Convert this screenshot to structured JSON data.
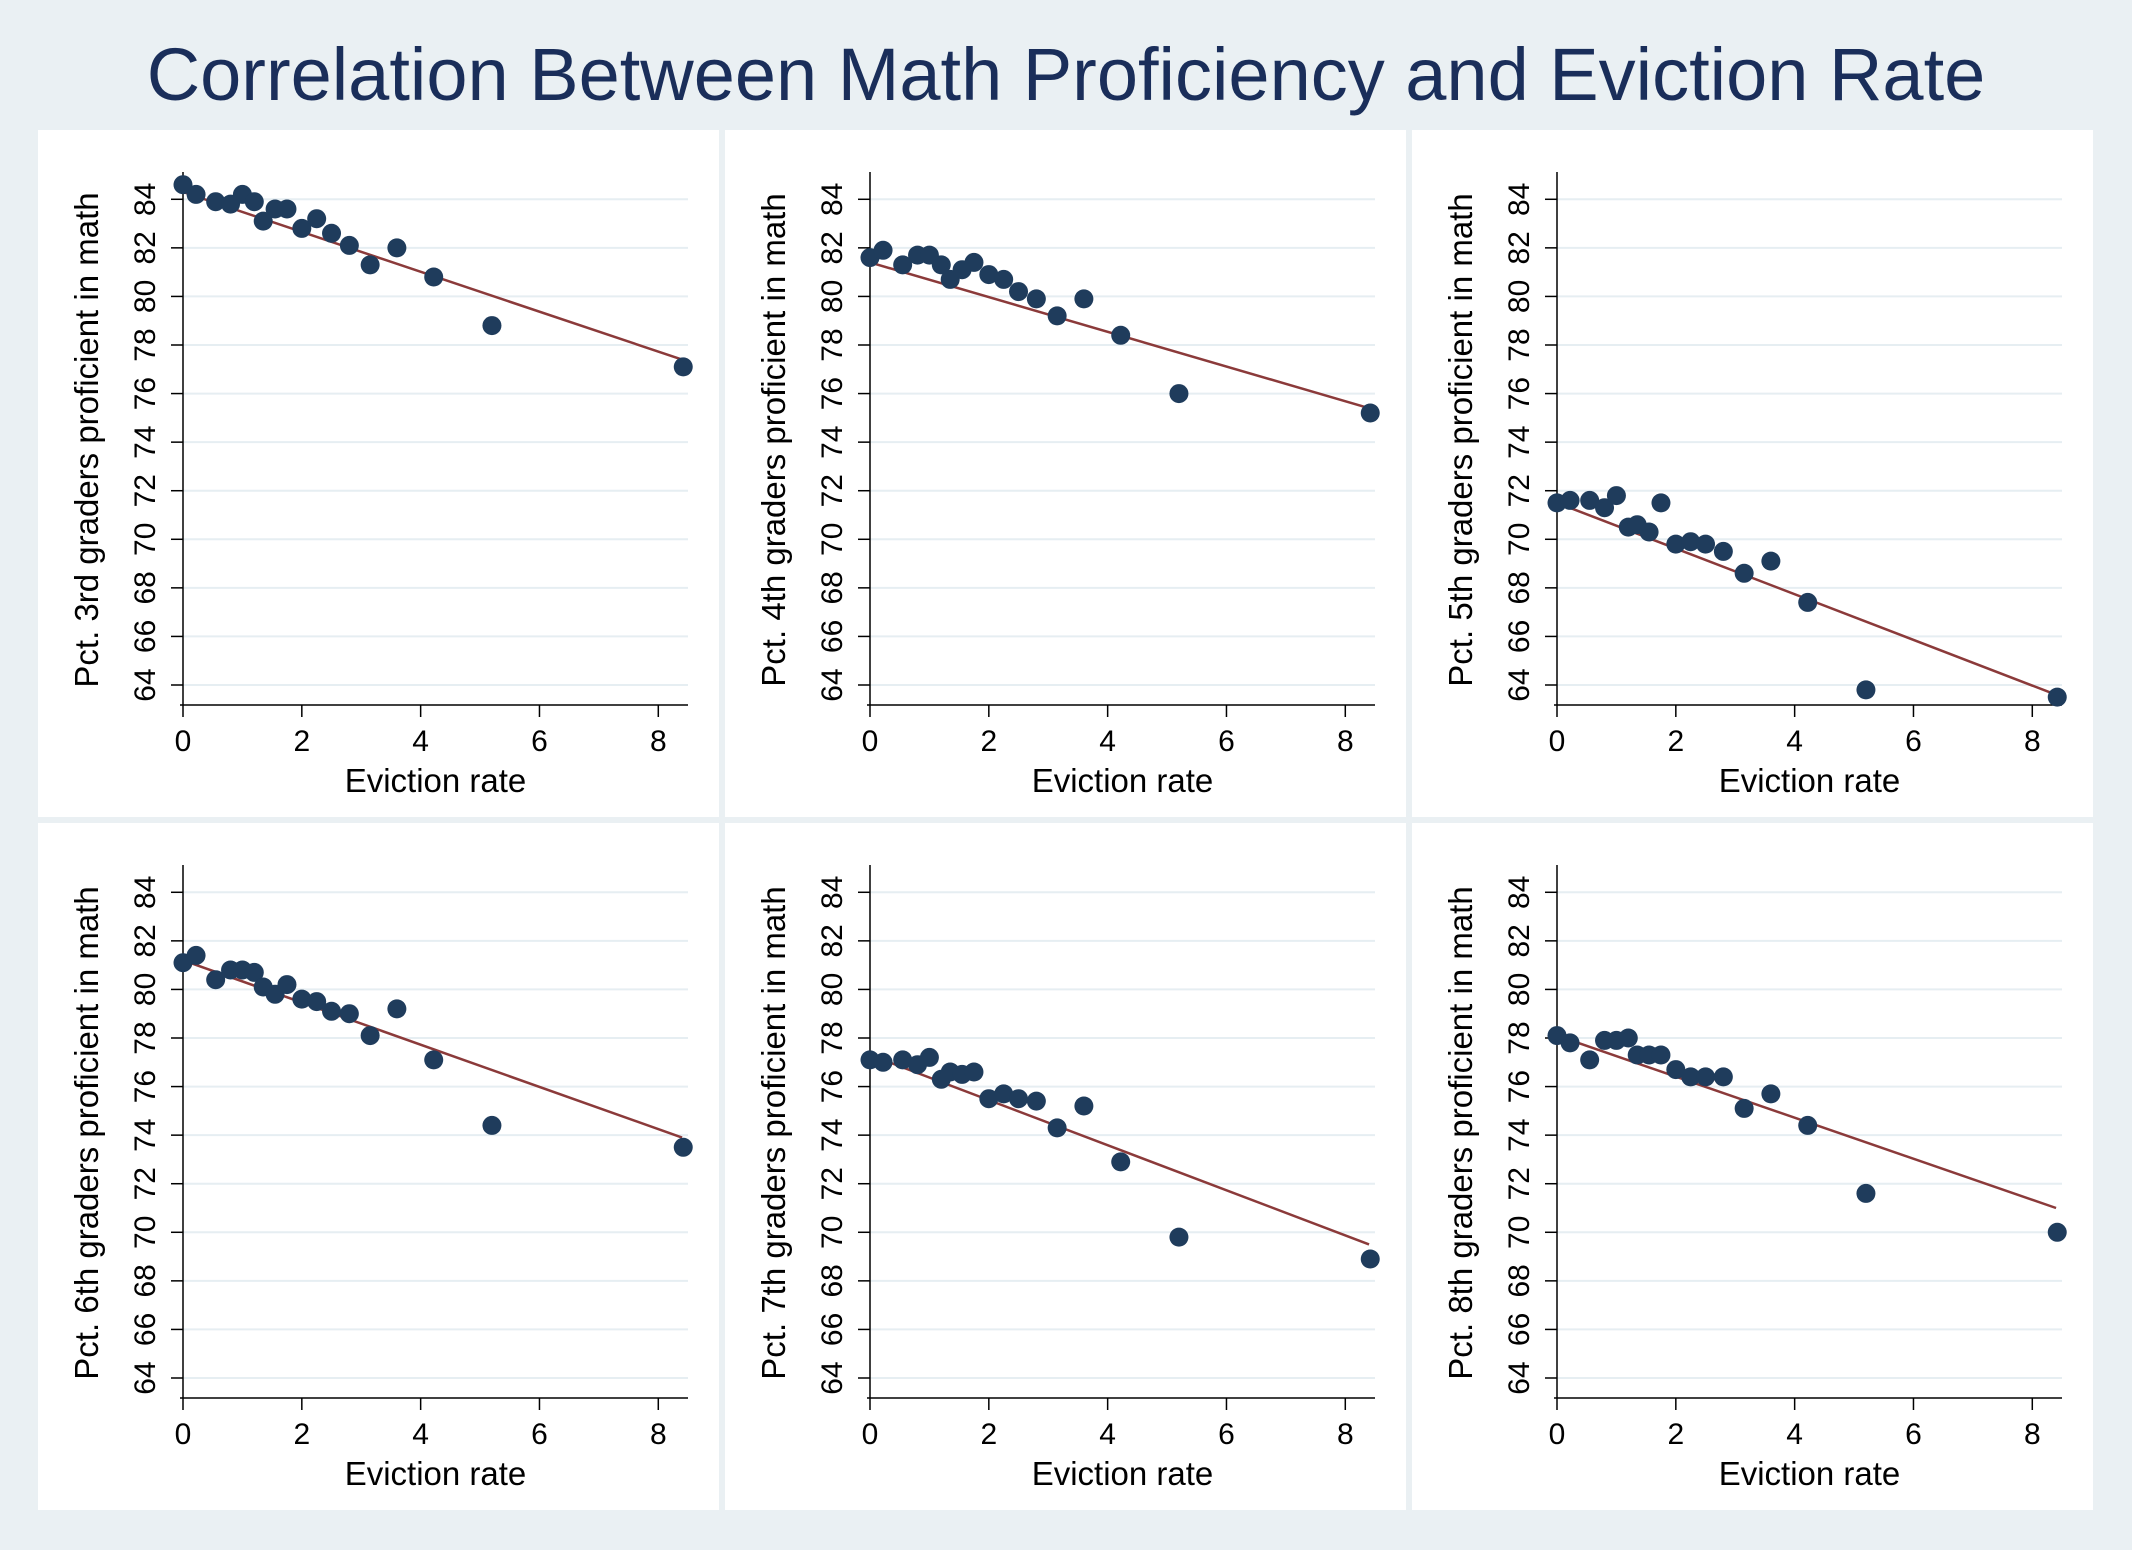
{
  "title": "Correlation Between Math Proficiency and Eviction Rate",
  "colors": {
    "background": "#eaf0f3",
    "panel": "#ffffff",
    "grid": "#e6eef2",
    "axis": "#000000",
    "point": "#1f3c5c",
    "fit_line": "#8b3a3a",
    "title": "#1a2e5a"
  },
  "chart_data": [
    {
      "type": "scatter",
      "title": "",
      "xlabel": "Eviction rate",
      "ylabel": "Pct. 3rd graders proficient in math",
      "xlim": [
        0,
        8.5
      ],
      "ylim": [
        64,
        85
      ],
      "xticks": [
        0,
        2,
        4,
        6,
        8
      ],
      "yticks": [
        64,
        66,
        68,
        70,
        72,
        74,
        76,
        78,
        80,
        82,
        84
      ],
      "grid": true,
      "x": [
        0,
        0.22,
        0.55,
        0.8,
        1.0,
        1.2,
        1.35,
        1.55,
        1.75,
        2.0,
        2.25,
        2.5,
        2.8,
        3.15,
        3.6,
        4.22,
        5.2,
        8.42
      ],
      "y": [
        84.6,
        84.2,
        83.9,
        83.8,
        84.2,
        83.9,
        83.1,
        83.6,
        83.6,
        82.8,
        83.2,
        82.6,
        82.1,
        81.3,
        82.0,
        80.8,
        78.8,
        77.1
      ],
      "fit": {
        "x": [
          0,
          8.4
        ],
        "y": [
          84.3,
          77.4
        ]
      }
    },
    {
      "type": "scatter",
      "title": "",
      "xlabel": "Eviction rate",
      "ylabel": "Pct. 4th graders proficient in math",
      "xlim": [
        0,
        8.5
      ],
      "ylim": [
        64,
        85
      ],
      "xticks": [
        0,
        2,
        4,
        6,
        8
      ],
      "yticks": [
        64,
        66,
        68,
        70,
        72,
        74,
        76,
        78,
        80,
        82,
        84
      ],
      "grid": true,
      "x": [
        0,
        0.22,
        0.55,
        0.8,
        1.0,
        1.2,
        1.35,
        1.55,
        1.75,
        2.0,
        2.25,
        2.5,
        2.8,
        3.15,
        3.6,
        4.22,
        5.2,
        8.42
      ],
      "y": [
        81.6,
        81.9,
        81.3,
        81.7,
        81.7,
        81.3,
        80.7,
        81.1,
        81.4,
        80.9,
        80.7,
        80.2,
        79.9,
        79.2,
        79.9,
        78.4,
        76.0,
        75.2
      ],
      "fit": {
        "x": [
          0,
          8.4
        ],
        "y": [
          81.4,
          75.4
        ]
      }
    },
    {
      "type": "scatter",
      "title": "",
      "xlabel": "Eviction rate",
      "ylabel": "Pct. 5th graders proficient in math",
      "xlim": [
        0,
        8.5
      ],
      "ylim": [
        64,
        85
      ],
      "xticks": [
        0,
        2,
        4,
        6,
        8
      ],
      "yticks": [
        64,
        66,
        68,
        70,
        72,
        74,
        76,
        78,
        80,
        82,
        84
      ],
      "grid": true,
      "x": [
        0,
        0.22,
        0.55,
        0.8,
        1.0,
        1.2,
        1.35,
        1.55,
        1.75,
        2.0,
        2.25,
        2.5,
        2.8,
        3.15,
        3.6,
        4.22,
        5.2,
        8.42
      ],
      "y": [
        71.5,
        71.6,
        71.6,
        71.3,
        71.8,
        70.5,
        70.6,
        70.3,
        71.5,
        69.8,
        69.9,
        69.8,
        69.5,
        68.6,
        69.1,
        67.4,
        63.8,
        63.5
      ],
      "fit": {
        "x": [
          0,
          8.4
        ],
        "y": [
          71.5,
          63.6
        ]
      }
    },
    {
      "type": "scatter",
      "title": "",
      "xlabel": "Eviction rate",
      "ylabel": "Pct. 6th graders proficient in math",
      "xlim": [
        0,
        8.5
      ],
      "ylim": [
        64,
        85
      ],
      "xticks": [
        0,
        2,
        4,
        6,
        8
      ],
      "yticks": [
        64,
        66,
        68,
        70,
        72,
        74,
        76,
        78,
        80,
        82,
        84
      ],
      "grid": true,
      "x": [
        0,
        0.22,
        0.55,
        0.8,
        1.0,
        1.2,
        1.35,
        1.55,
        1.75,
        2.0,
        2.25,
        2.5,
        2.8,
        3.15,
        3.6,
        4.22,
        5.2,
        8.42
      ],
      "y": [
        81.1,
        81.4,
        80.4,
        80.8,
        80.8,
        80.7,
        80.1,
        79.8,
        80.2,
        79.6,
        79.5,
        79.1,
        79.0,
        78.1,
        79.2,
        77.1,
        74.4,
        73.5
      ],
      "fit": {
        "x": [
          0,
          8.4
        ],
        "y": [
          81.2,
          73.9
        ]
      }
    },
    {
      "type": "scatter",
      "title": "",
      "xlabel": "Eviction rate",
      "ylabel": "Pct. 7th graders proficient in math",
      "xlim": [
        0,
        8.5
      ],
      "ylim": [
        64,
        85
      ],
      "xticks": [
        0,
        2,
        4,
        6,
        8
      ],
      "yticks": [
        64,
        66,
        68,
        70,
        72,
        74,
        76,
        78,
        80,
        82,
        84
      ],
      "grid": true,
      "x": [
        0,
        0.22,
        0.55,
        0.8,
        1.0,
        1.2,
        1.35,
        1.55,
        1.75,
        2.0,
        2.25,
        2.5,
        2.8,
        3.15,
        3.6,
        4.22,
        5.2,
        8.42
      ],
      "y": [
        77.1,
        77.0,
        77.1,
        76.9,
        77.2,
        76.3,
        76.6,
        76.5,
        76.6,
        75.5,
        75.7,
        75.5,
        75.4,
        74.3,
        75.2,
        72.9,
        69.8,
        68.9
      ],
      "fit": {
        "x": [
          0,
          8.4
        ],
        "y": [
          77.3,
          69.5
        ]
      }
    },
    {
      "type": "scatter",
      "title": "",
      "xlabel": "Eviction rate",
      "ylabel": "Pct. 8th graders proficient in math",
      "xlim": [
        0,
        8.5
      ],
      "ylim": [
        64,
        85
      ],
      "xticks": [
        0,
        2,
        4,
        6,
        8
      ],
      "yticks": [
        64,
        66,
        68,
        70,
        72,
        74,
        76,
        78,
        80,
        82,
        84
      ],
      "grid": true,
      "x": [
        0,
        0.22,
        0.55,
        0.8,
        1.0,
        1.2,
        1.35,
        1.55,
        1.75,
        2.0,
        2.25,
        2.5,
        2.8,
        3.15,
        3.6,
        4.22,
        5.2,
        8.42
      ],
      "y": [
        78.1,
        77.8,
        77.1,
        77.9,
        77.9,
        78.0,
        77.3,
        77.3,
        77.3,
        76.7,
        76.4,
        76.4,
        76.4,
        75.1,
        75.7,
        74.4,
        71.6,
        70.0
      ],
      "fit": {
        "x": [
          0,
          8.4
        ],
        "y": [
          78.1,
          71.0
        ]
      }
    }
  ]
}
